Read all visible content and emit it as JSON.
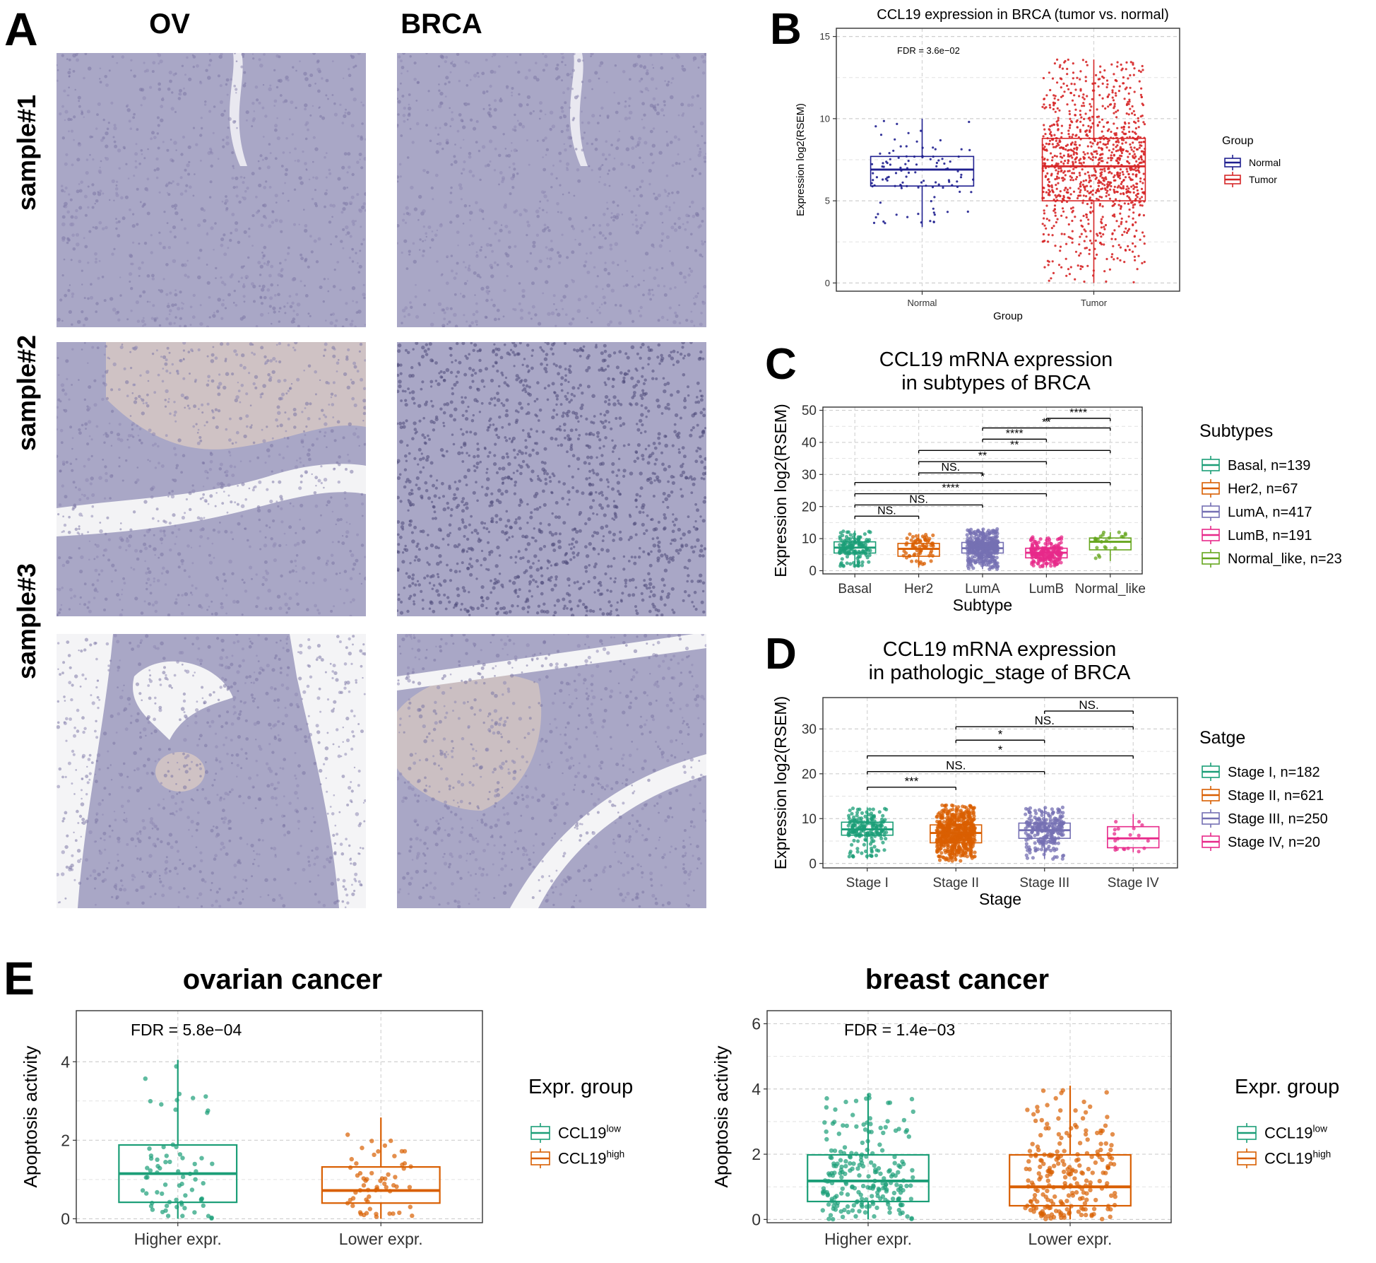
{
  "panel_a": {
    "letter": "A",
    "columns": [
      "OV",
      "BRCA"
    ],
    "rows": [
      "sample#1",
      "sample#2",
      "sample#3"
    ]
  },
  "chart_data": [
    {
      "id": "B",
      "letter": "B",
      "type": "box",
      "title": "CCL19 expression in BRCA (tumor vs. normal)",
      "xlabel": "Group",
      "ylabel": "Expression log2(RSEM)",
      "ylim": [
        -0.5,
        15.5
      ],
      "yticks": [
        0,
        5,
        10,
        15
      ],
      "categories": [
        "Normal",
        "Tumor"
      ],
      "annotation": "FDR = 3.6e−02",
      "legend_title": "Group",
      "legend_position": "right",
      "legend": [
        "Normal",
        "Tumor"
      ],
      "colors": [
        "#1f1f8f",
        "#d62728"
      ],
      "boxes": [
        {
          "name": "Normal",
          "min": 3.4,
          "q1": 5.9,
          "median": 6.9,
          "q3": 7.7,
          "max": 10.0
        },
        {
          "name": "Tumor",
          "min": 0.0,
          "q1": 5.0,
          "median": 7.1,
          "q3": 8.8,
          "max": 13.6
        }
      ],
      "points_n": [
        110,
        1100
      ],
      "grid": true
    },
    {
      "id": "C",
      "letter": "C",
      "type": "box",
      "title": [
        "CCL19 mRNA expression",
        "in subtypes of BRCA"
      ],
      "xlabel": "Subtype",
      "ylabel": "Expression log2(RSEM)",
      "ylim": [
        -1,
        51
      ],
      "yticks": [
        0,
        10,
        20,
        30,
        40,
        50
      ],
      "categories": [
        "Basal",
        "Her2",
        "LumA",
        "LumB",
        "Normal_like"
      ],
      "legend_title": "Subtypes",
      "legend_position": "right",
      "legend": [
        "Basal, n=139",
        "Her2, n=67",
        "LumA, n=417",
        "LumB, n=191",
        "Normal_like, n=23"
      ],
      "colors": [
        "#1b9e77",
        "#d95f02",
        "#7570b3",
        "#e7298a",
        "#66a61e"
      ],
      "boxes": [
        {
          "name": "Basal",
          "min": 1.0,
          "q1": 5.5,
          "median": 7.2,
          "q3": 9.0,
          "max": 12.5
        },
        {
          "name": "Her2",
          "min": 1.0,
          "q1": 4.5,
          "median": 6.8,
          "q3": 8.5,
          "max": 11.5
        },
        {
          "name": "LumA",
          "min": 0.5,
          "q1": 5.5,
          "median": 7.0,
          "q3": 8.8,
          "max": 13.0
        },
        {
          "name": "LumB",
          "min": 1.0,
          "q1": 4.0,
          "median": 5.6,
          "q3": 7.0,
          "max": 10.5
        },
        {
          "name": "Normal_like",
          "min": 3.0,
          "q1": 6.5,
          "median": 9.0,
          "q3": 10.2,
          "max": 12.0
        }
      ],
      "points_n": [
        139,
        67,
        417,
        191,
        23
      ],
      "significance": [
        {
          "from": 0,
          "to": 1,
          "y": 17,
          "label": "NS."
        },
        {
          "from": 0,
          "to": 2,
          "y": 20.5,
          "label": "NS."
        },
        {
          "from": 0,
          "to": 3,
          "y": 24,
          "label": "****"
        },
        {
          "from": 0,
          "to": 4,
          "y": 27.5,
          "label": "*"
        },
        {
          "from": 1,
          "to": 2,
          "y": 30.5,
          "label": "NS."
        },
        {
          "from": 1,
          "to": 3,
          "y": 34,
          "label": "**"
        },
        {
          "from": 1,
          "to": 4,
          "y": 37.5,
          "label": "**"
        },
        {
          "from": 2,
          "to": 3,
          "y": 41,
          "label": "****"
        },
        {
          "from": 2,
          "to": 4,
          "y": 44.5,
          "label": "**"
        },
        {
          "from": 3,
          "to": 4,
          "y": 47.5,
          "label": "****"
        }
      ],
      "grid": true
    },
    {
      "id": "D",
      "letter": "D",
      "type": "box",
      "title": [
        "CCL19 mRNA expression",
        "in pathologic_stage of BRCA"
      ],
      "xlabel": "Stage",
      "ylabel": "Expression log2(RSEM)",
      "ylim": [
        -1,
        37
      ],
      "yticks": [
        0,
        10,
        20,
        30
      ],
      "categories": [
        "Stage I",
        "Stage II",
        "Stage III",
        "Stage IV"
      ],
      "legend_title": "Satge",
      "legend_position": "right",
      "legend": [
        "Stage I, n=182",
        "Stage II, n=621",
        "Stage III, n=250",
        "Stage IV, n=20"
      ],
      "colors": [
        "#1b9e77",
        "#d95f02",
        "#7570b3",
        "#e7298a"
      ],
      "boxes": [
        {
          "name": "Stage I",
          "min": 1.0,
          "q1": 6.3,
          "median": 7.6,
          "q3": 9.2,
          "max": 12.5
        },
        {
          "name": "Stage II",
          "min": 0.5,
          "q1": 4.6,
          "median": 6.8,
          "q3": 8.6,
          "max": 13.0
        },
        {
          "name": "Stage III",
          "min": 1.0,
          "q1": 5.6,
          "median": 7.4,
          "q3": 9.0,
          "max": 12.5
        },
        {
          "name": "Stage IV",
          "min": 2.5,
          "q1": 3.5,
          "median": 5.6,
          "q3": 8.2,
          "max": 11.0
        }
      ],
      "points_n": [
        182,
        621,
        250,
        20
      ],
      "significance": [
        {
          "from": 0,
          "to": 1,
          "y": 17,
          "label": "***"
        },
        {
          "from": 0,
          "to": 2,
          "y": 20.5,
          "label": "NS."
        },
        {
          "from": 0,
          "to": 3,
          "y": 24,
          "label": "*"
        },
        {
          "from": 1,
          "to": 2,
          "y": 27.5,
          "label": "*"
        },
        {
          "from": 1,
          "to": 3,
          "y": 30.5,
          "label": "NS."
        },
        {
          "from": 2,
          "to": 3,
          "y": 34,
          "label": "NS."
        }
      ],
      "grid": true
    },
    {
      "id": "E1",
      "letter": "E",
      "type": "box",
      "title": "ovarian cancer",
      "xlabel": "",
      "ylabel": "Apoptosis activity",
      "ylim": [
        -0.1,
        5.3
      ],
      "yticks": [
        0,
        2,
        4
      ],
      "categories": [
        "Higher expr.",
        "Lower expr."
      ],
      "annotation": "FDR = 5.8e−04",
      "legend_title": "Expr. group",
      "legend_position": "right",
      "legend": [
        "CCL19",
        "CCL19"
      ],
      "legend_sup": [
        "low",
        "high"
      ],
      "colors": [
        "#1b9e77",
        "#d95f02"
      ],
      "boxes": [
        {
          "name": "Higher expr.",
          "min": 0.0,
          "q1": 0.42,
          "median": 1.15,
          "q3": 1.88,
          "max": 4.05
        },
        {
          "name": "Lower expr.",
          "min": 0.0,
          "q1": 0.4,
          "median": 0.72,
          "q3": 1.32,
          "max": 2.58
        }
      ],
      "points_n": [
        70,
        60
      ],
      "grid": true
    },
    {
      "id": "E2",
      "type": "box",
      "title": "breast cancer",
      "xlabel": "",
      "ylabel": "Apoptosis activity",
      "ylim": [
        -0.1,
        6.4
      ],
      "yticks": [
        0,
        2,
        4,
        6
      ],
      "categories": [
        "Higher expr.",
        "Lower expr."
      ],
      "annotation": "FDR = 1.4e−03",
      "legend_title": "Expr. group",
      "legend_position": "right",
      "legend": [
        "CCL19",
        "CCL19"
      ],
      "legend_sup": [
        "low",
        "high"
      ],
      "colors": [
        "#1b9e77",
        "#d95f02"
      ],
      "boxes": [
        {
          "name": "Higher expr.",
          "min": 0.0,
          "q1": 0.55,
          "median": 1.18,
          "q3": 1.98,
          "max": 3.85
        },
        {
          "name": "Lower expr.",
          "min": 0.0,
          "q1": 0.42,
          "median": 1.0,
          "q3": 1.98,
          "max": 4.1
        }
      ],
      "points_n": [
        220,
        230
      ],
      "grid": true
    }
  ]
}
